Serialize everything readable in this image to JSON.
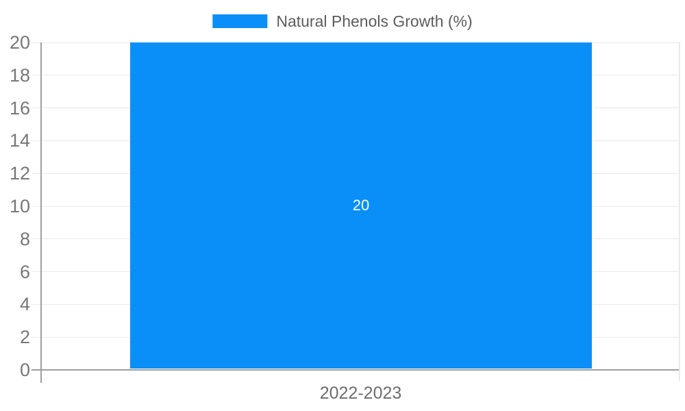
{
  "chart_data": {
    "type": "bar",
    "title": "",
    "categories": [
      "2022-2023"
    ],
    "series": [
      {
        "name": "Natural Phenols Growth (%)",
        "values": [
          20
        ]
      }
    ],
    "bar_labels": [
      "20"
    ],
    "xlabel": "",
    "ylabel": "",
    "ylim": [
      0,
      20
    ],
    "yticks": [
      0,
      2,
      4,
      6,
      8,
      10,
      12,
      14,
      16,
      18,
      20
    ],
    "grid": true,
    "legend_position": "top",
    "colors": {
      "bar": "#0a8ff8",
      "gridline": "#e9e9e9",
      "axis": "#9e9e9e",
      "tick_text": "#777777",
      "legend_text": "#5c5c5c",
      "xlabel_text": "#6d6d6d",
      "bar_label_text": "#ffffff"
    }
  }
}
